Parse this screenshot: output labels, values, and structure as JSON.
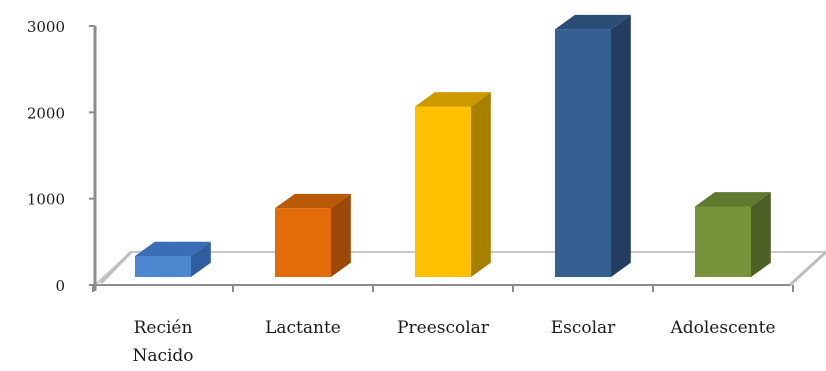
{
  "chart_data": {
    "type": "bar",
    "style": "3d-column",
    "categories": [
      [
        "Recién",
        "Nacido"
      ],
      [
        "Lactante"
      ],
      [
        "Preescolar"
      ],
      [
        "Escolar"
      ],
      [
        "Adolescente"
      ]
    ],
    "values": [
      250,
      820,
      2030,
      2950,
      840
    ],
    "colors": [
      "#4f86d0",
      "#e36c0a",
      "#ffc000",
      "#365f91",
      "#77933c"
    ],
    "side_colors": [
      "#2f5e9e",
      "#9c4808",
      "#a88000",
      "#223d5f",
      "#4c6026"
    ],
    "top_colors": [
      "#3a6fb8",
      "#b85a08",
      "#cc9a00",
      "#2b4c75",
      "#5f7a30"
    ],
    "yticks": [
      0,
      1000,
      2000,
      3000
    ],
    "ylim": [
      0,
      3000
    ],
    "grid": false,
    "legend": "none",
    "title": "",
    "xlabel": "",
    "ylabel": ""
  }
}
